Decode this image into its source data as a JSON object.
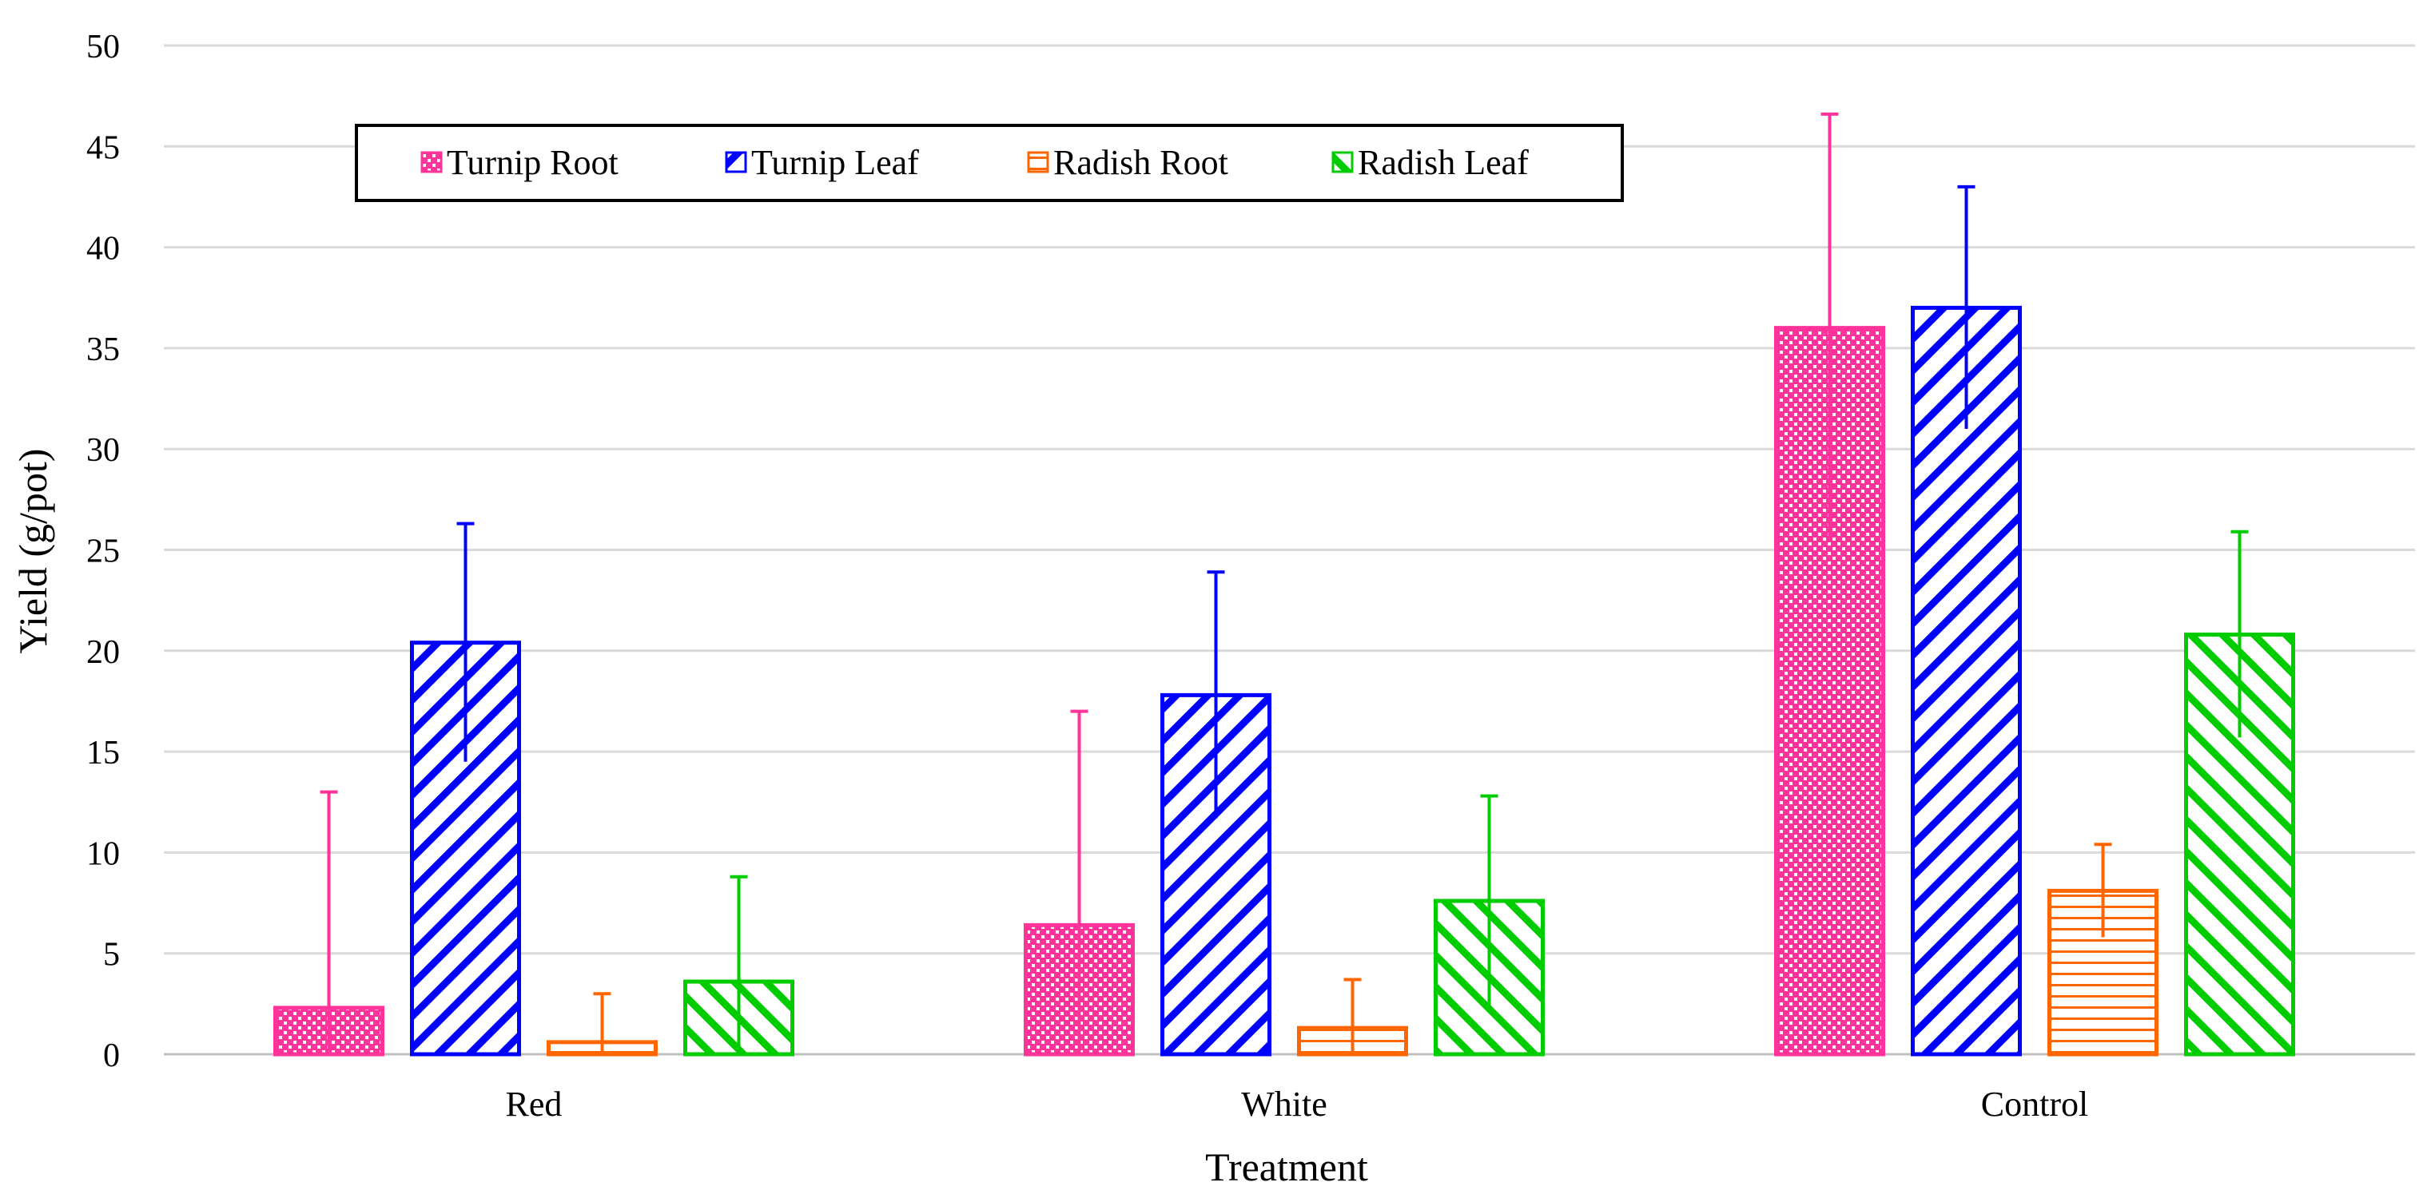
{
  "chart_data": {
    "type": "bar",
    "title": "",
    "xlabel": "Treatment",
    "ylabel": "Yield (g/pot)",
    "ylim": [
      0,
      50
    ],
    "ytick_step": 5,
    "yticks": [
      "0",
      "5",
      "10",
      "15",
      "20",
      "25",
      "30",
      "35",
      "40",
      "45",
      "50"
    ],
    "grid": true,
    "legend_position": "top-left",
    "categories": [
      "Red",
      "White",
      "Control"
    ],
    "series": [
      {
        "name": "Turnip Root",
        "color": "#ff3399",
        "pattern": "dots",
        "values": [
          2.3,
          6.4,
          36.0
        ],
        "errors": [
          10.7,
          10.6,
          10.6
        ]
      },
      {
        "name": "Turnip Leaf",
        "color": "#0000ff",
        "pattern": "diag-down",
        "values": [
          20.4,
          17.8,
          37.0
        ],
        "errors": [
          5.9,
          6.1,
          6.0
        ]
      },
      {
        "name": "Radish Root",
        "color": "#ff6600",
        "pattern": "horizontal",
        "values": [
          0.6,
          1.3,
          8.1
        ],
        "errors": [
          2.4,
          2.4,
          2.3
        ]
      },
      {
        "name": "Radish Leaf",
        "color": "#00cc00",
        "pattern": "diag-up",
        "values": [
          3.6,
          7.6,
          20.8
        ],
        "errors": [
          5.2,
          5.2,
          5.1
        ]
      }
    ]
  }
}
